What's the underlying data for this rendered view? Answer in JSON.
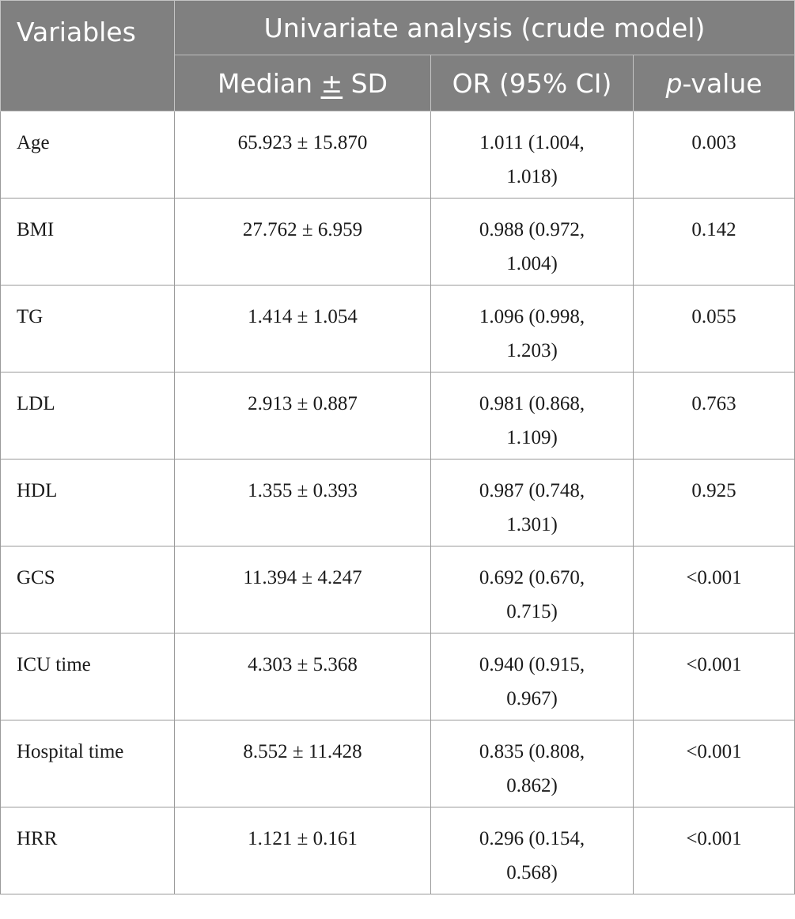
{
  "header": {
    "variables": "Variables",
    "group": "Univariate analysis (crude model)",
    "median_prefix": "Median ",
    "median_pm": "±",
    "median_suffix": " SD",
    "or": "OR (95% CI)",
    "p_italic": "p",
    "p_rest": "-value"
  },
  "rows": [
    {
      "variable": "Age",
      "median_sd": "65.923 ± 15.870",
      "or_ci": "1.011 (1.004, 1.018)",
      "p": "0.003"
    },
    {
      "variable": "BMI",
      "median_sd": "27.762 ± 6.959",
      "or_ci": "0.988 (0.972, 1.004)",
      "p": "0.142"
    },
    {
      "variable": "TG",
      "median_sd": "1.414 ± 1.054",
      "or_ci": "1.096 (0.998, 1.203)",
      "p": "0.055"
    },
    {
      "variable": "LDL",
      "median_sd": "2.913 ± 0.887",
      "or_ci": "0.981 (0.868, 1.109)",
      "p": "0.763"
    },
    {
      "variable": "HDL",
      "median_sd": "1.355 ± 0.393",
      "or_ci": "0.987 (0.748, 1.301)",
      "p": "0.925"
    },
    {
      "variable": "GCS",
      "median_sd": "11.394 ± 4.247",
      "or_ci": "0.692 (0.670, 0.715)",
      "p": "<0.001"
    },
    {
      "variable": "ICU time",
      "median_sd": "4.303 ± 5.368",
      "or_ci": "0.940 (0.915, 0.967)",
      "p": "<0.001"
    },
    {
      "variable": "Hospital time",
      "median_sd": "8.552 ± 11.428",
      "or_ci": "0.835 (0.808, 0.862)",
      "p": "<0.001"
    },
    {
      "variable": "HRR",
      "median_sd": "1.121 ± 0.161",
      "or_ci": "0.296 (0.154, 0.568)",
      "p": "<0.001"
    }
  ],
  "colors": {
    "header_bg": "#808080",
    "header_text": "#ffffff",
    "grid": "#9a9a9a"
  }
}
